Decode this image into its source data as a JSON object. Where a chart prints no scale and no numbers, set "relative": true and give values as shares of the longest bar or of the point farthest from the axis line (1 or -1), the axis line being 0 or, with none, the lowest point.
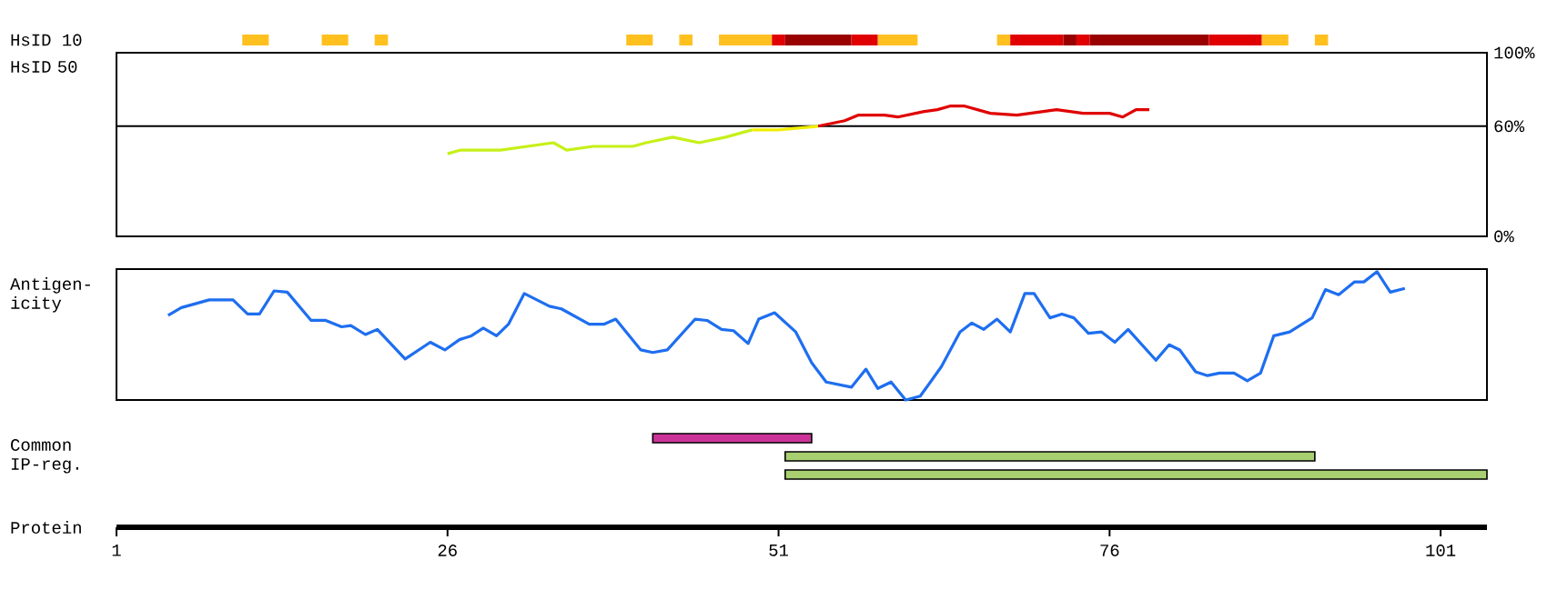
{
  "chart_data": [
    {
      "type": "bar",
      "orientation": "horizontal",
      "categories": [
        "HsID 10"
      ],
      "xlim": [
        1,
        101
      ],
      "xticks": [
        1,
        26,
        51,
        76,
        101
      ],
      "tick_labels": "y",
      "series": [
        {
          "color": "#ffc020",
          "values": [
            2
          ],
          "base": [
            10.5
          ]
        },
        {
          "color": "#ffc020",
          "values": [
            2
          ],
          "base": [
            16.5
          ]
        },
        {
          "color": "#ffc020",
          "values": [
            1
          ],
          "base": [
            20.5
          ]
        },
        {
          "color": "#ffc020",
          "values": [
            2
          ],
          "base": [
            39.5
          ]
        },
        {
          "color": "#ffc020",
          "values": [
            1
          ],
          "base": [
            43.5
          ]
        },
        {
          "color": "#ffc020",
          "values": [
            4
          ],
          "base": [
            46.5
          ]
        },
        {
          "color": "#e00000",
          "values": [
            1
          ],
          "base": [
            50.5
          ]
        },
        {
          "color": "#990000",
          "values": [
            5
          ],
          "base": [
            51.5
          ]
        },
        {
          "color": "#e00000",
          "values": [
            2
          ],
          "base": [
            56.5
          ]
        },
        {
          "color": "#ffc020",
          "values": [
            3
          ],
          "base": [
            58.5
          ]
        },
        {
          "color": "#ffc020",
          "values": [
            1
          ],
          "base": [
            67.5
          ]
        },
        {
          "color": "#e00000",
          "values": [
            4
          ],
          "base": [
            68.5
          ]
        },
        {
          "color": "#990000",
          "values": [
            1
          ],
          "base": [
            72.5
          ]
        },
        {
          "color": "#e00000",
          "values": [
            1
          ],
          "base": [
            73.5
          ]
        },
        {
          "color": "#990000",
          "values": [
            9
          ],
          "base": [
            74.5
          ]
        },
        {
          "color": "#e00000",
          "values": [
            4
          ],
          "base": [
            83.5
          ]
        },
        {
          "color": "#ffc020",
          "values": [
            2
          ],
          "base": [
            87.5
          ]
        },
        {
          "color": "#ffc020",
          "values": [
            1
          ],
          "base": [
            91.5
          ]
        }
      ]
    },
    {
      "type": "line",
      "ylabel": "HsID 50",
      "xlim": [
        1,
        104.5
      ],
      "xticks": [
        1,
        26,
        51,
        76,
        101
      ],
      "ylim": [
        0,
        100
      ],
      "yticks": [
        {
          "value": 0,
          "label": "0%"
        },
        {
          "value": 60,
          "label": "60%"
        },
        {
          "value": 100,
          "label": "100%"
        }
      ],
      "tick_labels": "y",
      "ref_lines": [
        {
          "axis": "y",
          "value": 60,
          "color": "#000000"
        }
      ],
      "series": [
        {
          "color": "#c6f018",
          "x": [
            26,
            27,
            30,
            32,
            34,
            35,
            37,
            40,
            41,
            43,
            45,
            47,
            49
          ],
          "values": [
            45,
            47,
            47,
            49,
            51,
            47,
            49,
            49,
            51,
            54,
            51,
            54,
            58
          ]
        },
        {
          "color": "#f2ee00",
          "x": [
            49,
            51,
            54
          ],
          "values": [
            58,
            58,
            60
          ]
        },
        {
          "color": "#e00000",
          "x": [
            54,
            56,
            57,
            59,
            60,
            62,
            63,
            64,
            65,
            67,
            69,
            70,
            72,
            73,
            74,
            76,
            77,
            78,
            79
          ],
          "values": [
            60,
            63,
            66,
            66,
            65,
            68,
            69,
            71,
            71,
            67,
            66,
            67,
            69,
            68,
            67,
            67,
            65,
            69,
            69
          ]
        }
      ]
    },
    {
      "type": "line",
      "ylabel": "Antigen-icity",
      "xlim": [
        1,
        104.5
      ],
      "xticks": [
        1,
        26,
        51,
        76,
        101
      ],
      "relative": true,
      "tick_labels": false,
      "series": [
        {
          "color": "#1e6ef0",
          "x": [
            4.9,
            5.9,
            8.0,
            9.8,
            10.9,
            11.8,
            12.9,
            13.9,
            15.7,
            16.8,
            18.0,
            18.7,
            19.8,
            20.7,
            22.8,
            24.7,
            25.8,
            26.9,
            27.8,
            28.7,
            29.7,
            30.6,
            31.8,
            33.7,
            34.6,
            36.7,
            37.8,
            38.7,
            40.6,
            41.5,
            42.6,
            44.7,
            45.6,
            46.7,
            47.6,
            48.7,
            49.5,
            50.7,
            52.3,
            53.5,
            54.6,
            56.5,
            57.6,
            58.5,
            59.5,
            60.6,
            61.7,
            63.3,
            64.7,
            65.6,
            66.5,
            67.5,
            68.5,
            69.6,
            70.3,
            71.5,
            72.4,
            73.3,
            74.4,
            75.4,
            76.4,
            77.4,
            79.5,
            80.5,
            81.3,
            82.5,
            83.4,
            84.3,
            85.4,
            86.4,
            87.4,
            88.4,
            89.6,
            91.3,
            92.3,
            93.3,
            94.5,
            95.2,
            96.2,
            97.2,
            98.3
          ],
          "values": [
            0.66,
            0.72,
            0.78,
            0.78,
            0.67,
            0.67,
            0.85,
            0.84,
            0.62,
            0.62,
            0.57,
            0.58,
            0.51,
            0.55,
            0.32,
            0.45,
            0.39,
            0.47,
            0.5,
            0.56,
            0.5,
            0.59,
            0.83,
            0.73,
            0.71,
            0.59,
            0.59,
            0.63,
            0.39,
            0.37,
            0.39,
            0.63,
            0.62,
            0.55,
            0.54,
            0.44,
            0.63,
            0.68,
            0.53,
            0.29,
            0.14,
            0.1,
            0.24,
            0.09,
            0.14,
            0,
            0.03,
            0.26,
            0.53,
            0.6,
            0.55,
            0.63,
            0.53,
            0.83,
            0.83,
            0.64,
            0.67,
            0.64,
            0.52,
            0.53,
            0.45,
            0.55,
            0.31,
            0.43,
            0.39,
            0.22,
            0.19,
            0.21,
            0.21,
            0.15,
            0.21,
            0.5,
            0.53,
            0.64,
            0.86,
            0.82,
            0.92,
            0.92,
            1.0,
            0.84,
            0.87
          ]
        }
      ]
    },
    {
      "type": "bar",
      "orientation": "horizontal",
      "ylabel": "Common IP-reg.",
      "xlabel": "Protein",
      "categories": [
        null,
        null,
        null
      ],
      "xlim": [
        1,
        104.5
      ],
      "xticks": [
        1,
        26,
        51,
        76,
        101
      ],
      "tick_labels": "x",
      "series": [
        {
          "values": [
            12,
            40,
            53
          ],
          "base": [
            41.5,
            51.5,
            51.5
          ],
          "colors": [
            "#cc3399",
            "#a8d070",
            "#a8d070"
          ]
        }
      ]
    }
  ]
}
